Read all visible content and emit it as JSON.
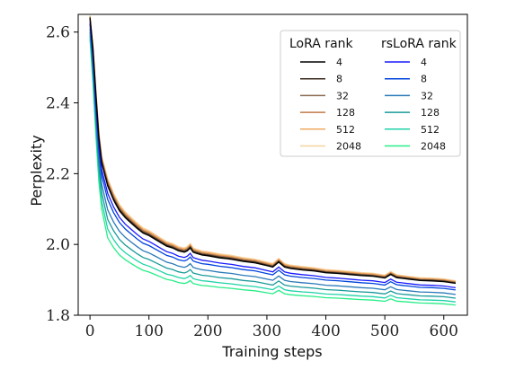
{
  "chart_data": {
    "type": "line",
    "title": "",
    "xlabel": "Training steps",
    "ylabel": "Perplexity",
    "xlim": [
      -20,
      640
    ],
    "ylim": [
      1.8,
      2.65
    ],
    "xticks": [
      0,
      100,
      200,
      300,
      400,
      500,
      600
    ],
    "xtick_labels": [
      "0",
      "100",
      "200",
      "300",
      "400",
      "500",
      "600"
    ],
    "yticks": [
      1.8,
      2.0,
      2.2,
      2.4,
      2.6
    ],
    "ytick_labels": [
      "1.8",
      "2.0",
      "2.2",
      "2.4",
      "2.6"
    ],
    "grid": false,
    "legend": {
      "placement": "top-right",
      "columns": [
        {
          "title": "LoRA rank",
          "entries": [
            "4",
            "8",
            "32",
            "128",
            "512",
            "2048"
          ]
        },
        {
          "title": "rsLoRA rank",
          "entries": [
            "4",
            "8",
            "32",
            "128",
            "512",
            "2048"
          ]
        }
      ]
    },
    "series": [
      {
        "name": "4",
        "group": "LoRA rank",
        "color": "#000000",
        "offset": 0.0,
        "steep": 0.0
      },
      {
        "name": "8",
        "group": "LoRA rank",
        "color": "#3a2a1c",
        "offset": 0.001,
        "steep": 0.01
      },
      {
        "name": "32",
        "group": "LoRA rank",
        "color": "#8a6a50",
        "offset": 0.002,
        "steep": 0.02
      },
      {
        "name": "128",
        "group": "LoRA rank",
        "color": "#c27a48",
        "offset": 0.003,
        "steep": 0.03
      },
      {
        "name": "512",
        "group": "LoRA rank",
        "color": "#f0a860",
        "offset": 0.005,
        "steep": 0.04
      },
      {
        "name": "2048",
        "group": "LoRA rank",
        "color": "#f5d3a0",
        "offset": 0.007,
        "steep": 0.05
      },
      {
        "name": "4",
        "group": "rsLoRA rank",
        "color": "#1a1aff",
        "offset": -0.012,
        "steep": -0.03
      },
      {
        "name": "8",
        "group": "rsLoRA rank",
        "color": "#0044dd",
        "offset": -0.018,
        "steep": -0.07
      },
      {
        "name": "32",
        "group": "rsLoRA rank",
        "color": "#2a7ab8",
        "offset": -0.03,
        "steep": -0.13
      },
      {
        "name": "128",
        "group": "rsLoRA rank",
        "color": "#1a9a9a",
        "offset": -0.04,
        "steep": -0.19
      },
      {
        "name": "512",
        "group": "rsLoRA rank",
        "color": "#20d2a8",
        "offset": -0.05,
        "steep": -0.25
      },
      {
        "name": "2048",
        "group": "rsLoRA rank",
        "color": "#28ee88",
        "offset": -0.058,
        "steep": -0.31
      }
    ],
    "x": [
      0,
      5,
      10,
      15,
      20,
      30,
      40,
      50,
      60,
      70,
      80,
      90,
      100,
      110,
      120,
      130,
      140,
      150,
      160,
      165,
      170,
      175,
      180,
      190,
      200,
      220,
      240,
      260,
      280,
      300,
      310,
      320,
      330,
      340,
      360,
      380,
      400,
      420,
      440,
      460,
      480,
      500,
      510,
      520,
      530,
      540,
      560,
      580,
      600,
      620
    ],
    "base": [
      2.64,
      2.55,
      2.42,
      2.3,
      2.23,
      2.165,
      2.125,
      2.095,
      2.075,
      2.06,
      2.045,
      2.032,
      2.025,
      2.015,
      2.005,
      1.995,
      1.99,
      1.982,
      1.978,
      1.982,
      1.99,
      1.978,
      1.975,
      1.97,
      1.968,
      1.962,
      1.958,
      1.952,
      1.948,
      1.94,
      1.936,
      1.95,
      1.936,
      1.932,
      1.928,
      1.925,
      1.92,
      1.918,
      1.915,
      1.912,
      1.91,
      1.905,
      1.915,
      1.906,
      1.904,
      1.902,
      1.898,
      1.897,
      1.895,
      1.89
    ]
  }
}
